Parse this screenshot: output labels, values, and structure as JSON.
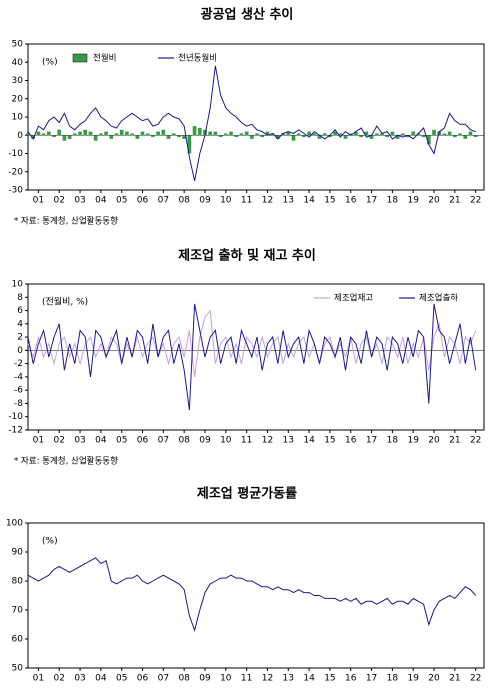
{
  "chart_data": [
    {
      "type": "combo",
      "title": "광공업 생산 추이",
      "annotation": "(%)",
      "note": "* 자료: 통계청, 산업활동동향",
      "legend": "upper left",
      "x": [
        1,
        1.25,
        1.5,
        1.75,
        2,
        2.25,
        2.5,
        2.75,
        3,
        3.25,
        3.5,
        3.75,
        4,
        4.25,
        4.5,
        4.75,
        5,
        5.25,
        5.5,
        5.75,
        6,
        6.25,
        6.5,
        6.75,
        7,
        7.25,
        7.5,
        7.75,
        8,
        8.25,
        8.5,
        8.75,
        9,
        9.25,
        9.5,
        9.75,
        10,
        10.25,
        10.5,
        10.75,
        11,
        11.25,
        11.5,
        11.75,
        12,
        12.25,
        12.5,
        12.75,
        13,
        13.25,
        13.5,
        13.75,
        14,
        14.25,
        14.5,
        14.75,
        15,
        15.25,
        15.5,
        15.75,
        16,
        16.25,
        16.5,
        16.75,
        17,
        17.25,
        17.5,
        17.75,
        18,
        18.25,
        18.5,
        18.75,
        19,
        19.25,
        19.5,
        19.75,
        20,
        20.25,
        20.5,
        20.75,
        21,
        21.25,
        21.5,
        21.75,
        22,
        22.25,
        22.5
      ],
      "xlim": [
        1,
        22.9
      ],
      "xticks": [
        {
          "value": 1.5,
          "label": "01"
        },
        {
          "value": 2.5,
          "label": "02"
        },
        {
          "value": 3.5,
          "label": "03"
        },
        {
          "value": 4.5,
          "label": "04"
        },
        {
          "value": 5.5,
          "label": "05"
        },
        {
          "value": 6.5,
          "label": "06"
        },
        {
          "value": 7.5,
          "label": "07"
        },
        {
          "value": 8.5,
          "label": "08"
        },
        {
          "value": 9.5,
          "label": "09"
        },
        {
          "value": 10.5,
          "label": "10"
        },
        {
          "value": 11.5,
          "label": "11"
        },
        {
          "value": 12.5,
          "label": "12"
        },
        {
          "value": 13.5,
          "label": "13"
        },
        {
          "value": 14.5,
          "label": "14"
        },
        {
          "value": 15.5,
          "label": "15"
        },
        {
          "value": 16.5,
          "label": "16"
        },
        {
          "value": 17.5,
          "label": "17"
        },
        {
          "value": 18.5,
          "label": "18"
        },
        {
          "value": 19.5,
          "label": "19"
        },
        {
          "value": 20.5,
          "label": "20"
        },
        {
          "value": 21.5,
          "label": "21"
        },
        {
          "value": 22.5,
          "label": "22"
        }
      ],
      "ylim": [
        -30,
        50
      ],
      "yticks": [
        -30,
        -20,
        -10,
        0,
        10,
        20,
        30,
        40,
        50
      ],
      "series": [
        {
          "name": "전월비",
          "kind": "bar",
          "color": "#3a9a4a",
          "values": [
            1,
            -2,
            2,
            1,
            2,
            -1,
            3,
            -3,
            -2,
            1,
            2,
            3,
            2,
            -3,
            1,
            2,
            -2,
            1,
            3,
            2,
            1,
            -2,
            2,
            1,
            -1,
            2,
            3,
            -2,
            1,
            -1,
            -2,
            -10,
            5,
            4,
            3,
            2,
            2,
            -1,
            1,
            2,
            -1,
            1,
            2,
            -2,
            1,
            -1,
            2,
            1,
            -2,
            1,
            2,
            -3,
            1,
            -1,
            2,
            1,
            -2,
            1,
            -1,
            2,
            1,
            -2,
            1,
            2,
            -1,
            2,
            -2,
            1,
            1,
            -1,
            2,
            -2,
            1,
            -1,
            2,
            1,
            -1,
            -5,
            3,
            2,
            1,
            2,
            -1,
            1,
            -2,
            2,
            -1
          ]
        },
        {
          "name": "전년동월비",
          "kind": "line",
          "color": "#1a1a8c",
          "values": [
            2,
            -2,
            5,
            3,
            8,
            10,
            7,
            12,
            5,
            3,
            6,
            8,
            12,
            15,
            10,
            8,
            5,
            4,
            8,
            10,
            12,
            10,
            8,
            9,
            5,
            6,
            10,
            12,
            10,
            9,
            5,
            -12,
            -25,
            -10,
            0,
            15,
            38,
            22,
            15,
            12,
            10,
            7,
            5,
            6,
            3,
            2,
            0,
            1,
            -2,
            1,
            2,
            1,
            3,
            1,
            -1,
            2,
            0,
            -2,
            0,
            3,
            -1,
            2,
            0,
            2,
            4,
            -1,
            0,
            5,
            1,
            2,
            -2,
            0,
            -1,
            0,
            -2,
            1,
            4,
            -5,
            -10,
            2,
            4,
            12,
            8,
            6,
            6,
            3,
            2
          ]
        }
      ]
    },
    {
      "type": "line",
      "title": "제조업 출하 및 재고 추이",
      "annotation": "(전월비, %)",
      "note": "* 자료: 통계청, 산업활동동향",
      "legend": "upper right",
      "x": [
        1,
        1.25,
        1.5,
        1.75,
        2,
        2.25,
        2.5,
        2.75,
        3,
        3.25,
        3.5,
        3.75,
        4,
        4.25,
        4.5,
        4.75,
        5,
        5.25,
        5.5,
        5.75,
        6,
        6.25,
        6.5,
        6.75,
        7,
        7.25,
        7.5,
        7.75,
        8,
        8.25,
        8.5,
        8.75,
        9,
        9.25,
        9.5,
        9.75,
        10,
        10.25,
        10.5,
        10.75,
        11,
        11.25,
        11.5,
        11.75,
        12,
        12.25,
        12.5,
        12.75,
        13,
        13.25,
        13.5,
        13.75,
        14,
        14.25,
        14.5,
        14.75,
        15,
        15.25,
        15.5,
        15.75,
        16,
        16.25,
        16.5,
        16.75,
        17,
        17.25,
        17.5,
        17.75,
        18,
        18.25,
        18.5,
        18.75,
        19,
        19.25,
        19.5,
        19.75,
        20,
        20.25,
        20.5,
        20.75,
        21,
        21.25,
        21.5,
        21.75,
        22,
        22.25,
        22.5
      ],
      "xlim": [
        1,
        22.9
      ],
      "xticks": [
        {
          "value": 1.5,
          "label": "01"
        },
        {
          "value": 2.5,
          "label": "02"
        },
        {
          "value": 3.5,
          "label": "03"
        },
        {
          "value": 4.5,
          "label": "04"
        },
        {
          "value": 5.5,
          "label": "05"
        },
        {
          "value": 6.5,
          "label": "06"
        },
        {
          "value": 7.5,
          "label": "07"
        },
        {
          "value": 8.5,
          "label": "08"
        },
        {
          "value": 9.5,
          "label": "09"
        },
        {
          "value": 10.5,
          "label": "10"
        },
        {
          "value": 11.5,
          "label": "11"
        },
        {
          "value": 12.5,
          "label": "12"
        },
        {
          "value": 13.5,
          "label": "13"
        },
        {
          "value": 14.5,
          "label": "14"
        },
        {
          "value": 15.5,
          "label": "15"
        },
        {
          "value": 16.5,
          "label": "16"
        },
        {
          "value": 17.5,
          "label": "17"
        },
        {
          "value": 18.5,
          "label": "18"
        },
        {
          "value": 19.5,
          "label": "19"
        },
        {
          "value": 20.5,
          "label": "20"
        },
        {
          "value": 21.5,
          "label": "21"
        },
        {
          "value": 22.5,
          "label": "22"
        }
      ],
      "ylim": [
        -12,
        10
      ],
      "yticks": [
        -12,
        -10,
        -8,
        -6,
        -4,
        -2,
        0,
        2,
        4,
        6,
        8,
        10
      ],
      "series": [
        {
          "name": "제조업재고",
          "color": "#c8a0e0",
          "values": [
            1,
            -1,
            2,
            -1,
            1,
            -2,
            1,
            2,
            -1,
            1,
            -2,
            1,
            2,
            -1,
            1,
            -1,
            2,
            1,
            -2,
            1,
            -1,
            2,
            -1,
            1,
            2,
            -1,
            1,
            -2,
            1,
            2,
            -1,
            3,
            -4,
            2,
            5,
            6,
            -2,
            1,
            2,
            -1,
            1,
            -2,
            2,
            1,
            -1,
            2,
            -1,
            1,
            2,
            -2,
            1,
            -1,
            1,
            2,
            -1,
            1,
            -2,
            1,
            2,
            -1,
            1,
            -1,
            2,
            -2,
            1,
            2,
            -1,
            1,
            -2,
            2,
            1,
            -1,
            2,
            -2,
            1,
            -1,
            2,
            -3,
            2,
            4,
            -1,
            2,
            1,
            -2,
            2,
            1,
            3
          ]
        },
        {
          "name": "제조업출하",
          "color": "#1a1a8c",
          "values": [
            2,
            -2,
            1,
            3,
            -1,
            2,
            4,
            -3,
            1,
            -2,
            3,
            2,
            -4,
            3,
            2,
            -1,
            1,
            3,
            -2,
            2,
            -1,
            3,
            2,
            -2,
            4,
            -1,
            2,
            3,
            -2,
            1,
            -3,
            -9,
            7,
            3,
            -1,
            2,
            3,
            -2,
            1,
            2,
            -2,
            3,
            1,
            -1,
            2,
            -3,
            1,
            2,
            -2,
            3,
            -1,
            1,
            2,
            -2,
            3,
            1,
            -2,
            2,
            1,
            -1,
            2,
            -3,
            2,
            1,
            -2,
            3,
            -1,
            2,
            1,
            -3,
            2,
            1,
            -2,
            2,
            -1,
            3,
            2,
            -8,
            7,
            3,
            2,
            -2,
            1,
            4,
            -2,
            2,
            -3
          ]
        }
      ]
    },
    {
      "type": "line",
      "title": "제조업 평균가동률",
      "annotation": "(%)",
      "x": [
        1,
        1.25,
        1.5,
        1.75,
        2,
        2.25,
        2.5,
        2.75,
        3,
        3.25,
        3.5,
        3.75,
        4,
        4.25,
        4.5,
        4.75,
        5,
        5.25,
        5.5,
        5.75,
        6,
        6.25,
        6.5,
        6.75,
        7,
        7.25,
        7.5,
        7.75,
        8,
        8.25,
        8.5,
        8.75,
        9,
        9.25,
        9.5,
        9.75,
        10,
        10.25,
        10.5,
        10.75,
        11,
        11.25,
        11.5,
        11.75,
        12,
        12.25,
        12.5,
        12.75,
        13,
        13.25,
        13.5,
        13.75,
        14,
        14.25,
        14.5,
        14.75,
        15,
        15.25,
        15.5,
        15.75,
        16,
        16.25,
        16.5,
        16.75,
        17,
        17.25,
        17.5,
        17.75,
        18,
        18.25,
        18.5,
        18.75,
        19,
        19.25,
        19.5,
        19.75,
        20,
        20.25,
        20.5,
        20.75,
        21,
        21.25,
        21.5,
        21.75,
        22,
        22.25,
        22.5
      ],
      "xlim": [
        1,
        22.9
      ],
      "xticks": [
        {
          "value": 1.5,
          "label": "01"
        },
        {
          "value": 2.5,
          "label": "02"
        },
        {
          "value": 3.5,
          "label": "03"
        },
        {
          "value": 4.5,
          "label": "04"
        },
        {
          "value": 5.5,
          "label": "05"
        },
        {
          "value": 6.5,
          "label": "06"
        },
        {
          "value": 7.5,
          "label": "07"
        },
        {
          "value": 8.5,
          "label": "08"
        },
        {
          "value": 9.5,
          "label": "09"
        },
        {
          "value": 10.5,
          "label": "10"
        },
        {
          "value": 11.5,
          "label": "11"
        },
        {
          "value": 12.5,
          "label": "12"
        },
        {
          "value": 13.5,
          "label": "13"
        },
        {
          "value": 14.5,
          "label": "14"
        },
        {
          "value": 15.5,
          "label": "15"
        },
        {
          "value": 16.5,
          "label": "16"
        },
        {
          "value": 17.5,
          "label": "17"
        },
        {
          "value": 18.5,
          "label": "18"
        },
        {
          "value": 19.5,
          "label": "19"
        },
        {
          "value": 20.5,
          "label": "20"
        },
        {
          "value": 21.5,
          "label": "21"
        },
        {
          "value": 22.5,
          "label": "22"
        }
      ],
      "ylim": [
        50,
        100
      ],
      "yticks": [
        50,
        60,
        70,
        80,
        90,
        100
      ],
      "series": [
        {
          "color": "#1a1a8c",
          "values": [
            82,
            81,
            80,
            81,
            82,
            84,
            85,
            84,
            83,
            84,
            85,
            86,
            87,
            88,
            86,
            87,
            80,
            79,
            80,
            81,
            81,
            82,
            80,
            79,
            80,
            81,
            82,
            81,
            80,
            79,
            77,
            68,
            63,
            70,
            76,
            79,
            80,
            81,
            81,
            82,
            81,
            81,
            80,
            80,
            79,
            78,
            78,
            77,
            78,
            77,
            77,
            76,
            77,
            76,
            76,
            75,
            75,
            74,
            74,
            74,
            73,
            74,
            73,
            74,
            72,
            73,
            73,
            72,
            73,
            74,
            72,
            73,
            73,
            72,
            74,
            73,
            72,
            65,
            70,
            73,
            74,
            75,
            74,
            76,
            78,
            77,
            75
          ]
        }
      ]
    }
  ]
}
